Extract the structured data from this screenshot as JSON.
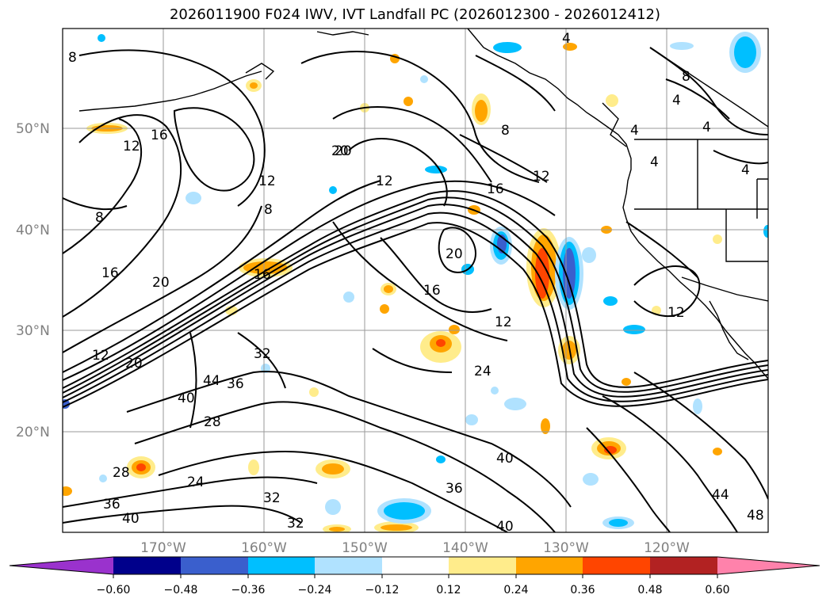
{
  "title": "2026011900 F024 IWV, IVT Landfall PC (2026012300 - 2026012412)",
  "map": {
    "lat_labels": [
      "50°N",
      "40°N",
      "30°N",
      "20°N"
    ],
    "lon_labels": [
      "170°W",
      "160°W",
      "150°W",
      "140°W",
      "130°W",
      "120°W"
    ],
    "contour_labels": [
      "8",
      "16",
      "12",
      "8",
      "12",
      "20",
      "16",
      "4",
      "4",
      "8",
      "4",
      "8",
      "4",
      "4",
      "12",
      "16",
      "20",
      "8",
      "12",
      "16",
      "20",
      "12",
      "20",
      "16",
      "20",
      "12",
      "24",
      "40",
      "44",
      "36",
      "32",
      "28",
      "28",
      "24",
      "36",
      "32",
      "32",
      "40",
      "36",
      "40",
      "40",
      "44",
      "48",
      "12",
      "4"
    ]
  },
  "colorbar": {
    "ticks": [
      "−0.60",
      "−0.48",
      "−0.36",
      "−0.24",
      "−0.12",
      "0.12",
      "0.24",
      "0.36",
      "0.48",
      "0.60"
    ],
    "colors": [
      "#9a32cd",
      "#00008b",
      "#3a5fcd",
      "#00bfff",
      "#b0e2ff",
      "#ffffff",
      "#ffec8b",
      "#ffa500",
      "#ff4500",
      "#b22222",
      "#ff82ab"
    ]
  }
}
